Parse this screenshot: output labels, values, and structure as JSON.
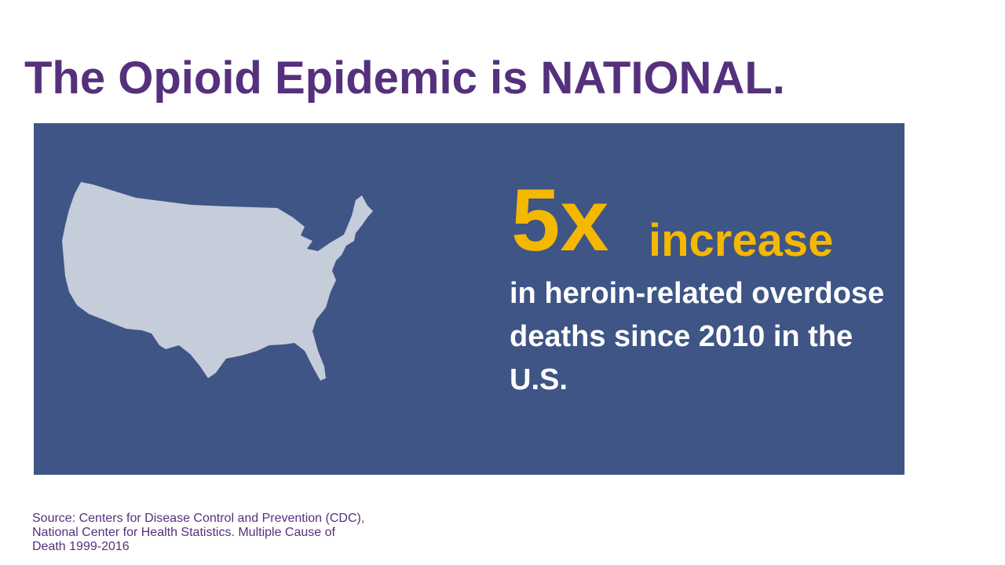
{
  "title": "The Opioid Epidemic is NATIONAL.",
  "stat": {
    "multiplier": "5x",
    "word": "increase",
    "text": "in heroin-related overdose deaths since 2010 in the U.S."
  },
  "source": "Source: Centers for Disease Control and Prevention (CDC), National Center for Health Statistics. Multiple Cause of Death 1999-2016"
}
